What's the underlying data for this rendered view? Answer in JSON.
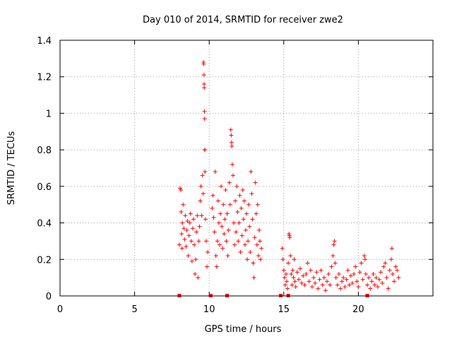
{
  "chart_data": {
    "type": "scatter",
    "title": "Day 010 of 2014, SRMTID for receiver zwe2",
    "xlabel": "GPS time / hours",
    "ylabel": "SRMTID / TECUs",
    "xlim": [
      0,
      25
    ],
    "ylim": [
      0,
      1.4
    ],
    "grid": true,
    "x_ticks": [
      0,
      5,
      10,
      15,
      20
    ],
    "x_tick_labels": [
      "0",
      "5",
      "10",
      "15",
      "20"
    ],
    "y_ticks": [
      0,
      0.2,
      0.4,
      0.6,
      0.8,
      1.0,
      1.2,
      1.4
    ],
    "y_tick_labels": [
      "0",
      "0.2",
      "0.4",
      "0.6",
      "0.8",
      "1",
      "1.2",
      "1.4"
    ],
    "marker": "+",
    "series": [
      {
        "name": "SRMTID",
        "color": "#ff0000",
        "points": [
          [
            8.0,
            0.28
          ],
          [
            8.05,
            0.59
          ],
          [
            8.1,
            0.58
          ],
          [
            8.12,
            0.46
          ],
          [
            8.15,
            0.34
          ],
          [
            8.18,
            0.26
          ],
          [
            8.2,
            0.4
          ],
          [
            8.25,
            0.5
          ],
          [
            8.3,
            0.37
          ],
          [
            8.35,
            0.31
          ],
          [
            8.4,
            0.44
          ],
          [
            8.45,
            0.27
          ],
          [
            8.5,
            0.36
          ],
          [
            8.55,
            0.41
          ],
          [
            8.6,
            0.22
          ],
          [
            8.65,
            0.33
          ],
          [
            8.7,
            0.4
          ],
          [
            8.75,
            0.45
          ],
          [
            8.8,
            0.3
          ],
          [
            8.85,
            0.19
          ],
          [
            8.9,
            0.37
          ],
          [
            8.95,
            0.42
          ],
          [
            9.0,
            0.28
          ],
          [
            9.05,
            0.12
          ],
          [
            9.1,
            0.2
          ],
          [
            9.15,
            0.35
          ],
          [
            9.2,
            0.44
          ],
          [
            9.25,
            0.1
          ],
          [
            9.3,
            0.3
          ],
          [
            9.35,
            0.38
          ],
          [
            9.4,
            0.52
          ],
          [
            9.45,
            0.6
          ],
          [
            9.5,
            0.44
          ],
          [
            9.55,
            0.66
          ],
          [
            9.6,
            0.56
          ],
          [
            9.62,
            1.28
          ],
          [
            9.63,
            1.27
          ],
          [
            9.65,
            1.21
          ],
          [
            9.66,
            1.16
          ],
          [
            9.67,
            1.14
          ],
          [
            9.68,
            1.01
          ],
          [
            9.69,
            0.97
          ],
          [
            9.7,
            0.8
          ],
          [
            9.71,
            0.8
          ],
          [
            9.72,
            0.68
          ],
          [
            9.75,
            0.42
          ],
          [
            9.8,
            0.3
          ],
          [
            9.85,
            0.16
          ],
          [
            9.9,
            0.24
          ],
          [
            10.2,
            0.48
          ],
          [
            10.25,
            0.55
          ],
          [
            10.3,
            0.43
          ],
          [
            10.35,
            0.35
          ],
          [
            10.4,
            0.68
          ],
          [
            10.45,
            0.22
          ],
          [
            10.5,
            0.16
          ],
          [
            10.55,
            0.3
          ],
          [
            10.6,
            0.52
          ],
          [
            10.65,
            0.4
          ],
          [
            10.7,
            0.28
          ],
          [
            10.75,
            0.45
          ],
          [
            10.8,
            0.6
          ],
          [
            10.85,
            0.38
          ],
          [
            10.9,
            0.26
          ],
          [
            10.95,
            0.5
          ],
          [
            11.0,
            0.34
          ],
          [
            11.05,
            0.42
          ],
          [
            11.1,
            0.58
          ],
          [
            11.15,
            0.3
          ],
          [
            11.2,
            0.45
          ],
          [
            11.25,
            0.22
          ],
          [
            11.3,
            0.36
          ],
          [
            11.35,
            0.62
          ],
          [
            11.4,
            0.5
          ],
          [
            11.45,
            0.91
          ],
          [
            11.48,
            0.88
          ],
          [
            11.5,
            0.84
          ],
          [
            11.52,
            0.82
          ],
          [
            11.55,
            0.72
          ],
          [
            11.6,
            0.66
          ],
          [
            11.65,
            0.4
          ],
          [
            11.7,
            0.28
          ],
          [
            11.75,
            0.52
          ],
          [
            11.8,
            0.35
          ],
          [
            11.85,
            0.6
          ],
          [
            11.9,
            0.46
          ],
          [
            11.95,
            0.3
          ],
          [
            12.0,
            0.4
          ],
          [
            12.05,
            0.55
          ],
          [
            12.1,
            0.24
          ],
          [
            12.15,
            0.48
          ],
          [
            12.2,
            0.33
          ],
          [
            12.25,
            0.58
          ],
          [
            12.3,
            0.42
          ],
          [
            12.35,
            0.52
          ],
          [
            12.4,
            0.28
          ],
          [
            12.45,
            0.36
          ],
          [
            12.5,
            0.45
          ],
          [
            12.55,
            0.2
          ],
          [
            12.6,
            0.3
          ],
          [
            12.65,
            0.5
          ],
          [
            12.7,
            0.38
          ],
          [
            12.75,
            0.24
          ],
          [
            12.8,
            0.68
          ],
          [
            12.85,
            0.56
          ],
          [
            12.9,
            0.42
          ],
          [
            12.95,
            0.18
          ],
          [
            13.0,
            0.1
          ],
          [
            13.05,
            0.32
          ],
          [
            13.1,
            0.62
          ],
          [
            13.15,
            0.45
          ],
          [
            13.2,
            0.28
          ],
          [
            13.25,
            0.5
          ],
          [
            13.3,
            0.22
          ],
          [
            13.35,
            0.36
          ],
          [
            13.4,
            0.3
          ],
          [
            13.45,
            0.2
          ],
          [
            13.5,
            0.26
          ],
          [
            14.9,
            0.26
          ],
          [
            14.95,
            0.2
          ],
          [
            15.0,
            0.14
          ],
          [
            15.05,
            0.1
          ],
          [
            15.1,
            0.06
          ],
          [
            15.15,
            0.12
          ],
          [
            15.2,
            0.08
          ],
          [
            15.25,
            0.04
          ],
          [
            15.3,
            0.18
          ],
          [
            15.35,
            0.34
          ],
          [
            15.38,
            0.33
          ],
          [
            15.4,
            0.32
          ],
          [
            15.45,
            0.22
          ],
          [
            15.5,
            0.12
          ],
          [
            15.55,
            0.06
          ],
          [
            15.6,
            0.14
          ],
          [
            15.65,
            0.1
          ],
          [
            15.7,
            0.2
          ],
          [
            15.75,
            0.08
          ],
          [
            15.8,
            0.05
          ],
          [
            15.9,
            0.13
          ],
          [
            16.0,
            0.09
          ],
          [
            16.1,
            0.15
          ],
          [
            16.2,
            0.07
          ],
          [
            16.3,
            0.11
          ],
          [
            16.4,
            0.06
          ],
          [
            16.5,
            0.12
          ],
          [
            16.6,
            0.18
          ],
          [
            16.7,
            0.08
          ],
          [
            16.8,
            0.14
          ],
          [
            16.9,
            0.05
          ],
          [
            17.0,
            0.1
          ],
          [
            17.1,
            0.07
          ],
          [
            17.2,
            0.13
          ],
          [
            17.3,
            0.04
          ],
          [
            17.4,
            0.09
          ],
          [
            17.5,
            0.14
          ],
          [
            17.6,
            0.06
          ],
          [
            17.7,
            0.1
          ],
          [
            17.8,
            0.03
          ],
          [
            17.9,
            0.08
          ],
          [
            18.0,
            0.12
          ],
          [
            18.1,
            0.06
          ],
          [
            18.2,
            0.16
          ],
          [
            18.3,
            0.22
          ],
          [
            18.35,
            0.28
          ],
          [
            18.4,
            0.3
          ],
          [
            18.45,
            0.18
          ],
          [
            18.5,
            0.1
          ],
          [
            18.6,
            0.06
          ],
          [
            18.7,
            0.12
          ],
          [
            18.8,
            0.04
          ],
          [
            18.9,
            0.08
          ],
          [
            19.0,
            0.1
          ],
          [
            19.1,
            0.05
          ],
          [
            19.2,
            0.09
          ],
          [
            19.3,
            0.14
          ],
          [
            19.4,
            0.06
          ],
          [
            19.5,
            0.11
          ],
          [
            19.6,
            0.07
          ],
          [
            19.7,
            0.12
          ],
          [
            19.8,
            0.16
          ],
          [
            19.9,
            0.08
          ],
          [
            20.0,
            0.05
          ],
          [
            20.1,
            0.13
          ],
          [
            20.2,
            0.18
          ],
          [
            20.3,
            0.09
          ],
          [
            20.4,
            0.22
          ],
          [
            20.45,
            0.2
          ],
          [
            20.5,
            0.12
          ],
          [
            20.6,
            0.06
          ],
          [
            20.7,
            0.1
          ],
          [
            20.8,
            0.04
          ],
          [
            20.9,
            0.08
          ],
          [
            21.0,
            0.12
          ],
          [
            21.1,
            0.06
          ],
          [
            21.2,
            0.1
          ],
          [
            21.3,
            0.05
          ],
          [
            21.4,
            0.09
          ],
          [
            21.5,
            0.13
          ],
          [
            21.6,
            0.07
          ],
          [
            21.7,
            0.16
          ],
          [
            21.8,
            0.18
          ],
          [
            21.9,
            0.1
          ],
          [
            22.0,
            0.04
          ],
          [
            22.1,
            0.14
          ],
          [
            22.2,
            0.2
          ],
          [
            22.25,
            0.26
          ],
          [
            22.3,
            0.12
          ],
          [
            22.4,
            0.08
          ],
          [
            22.5,
            0.16
          ],
          [
            22.6,
            0.14
          ],
          [
            22.7,
            0.1
          ]
        ]
      }
    ],
    "gap_markers": {
      "name": "data gaps",
      "color": "#ff0000",
      "x": [
        8.0,
        10.1,
        11.2,
        14.8,
        15.3,
        20.6
      ]
    }
  }
}
